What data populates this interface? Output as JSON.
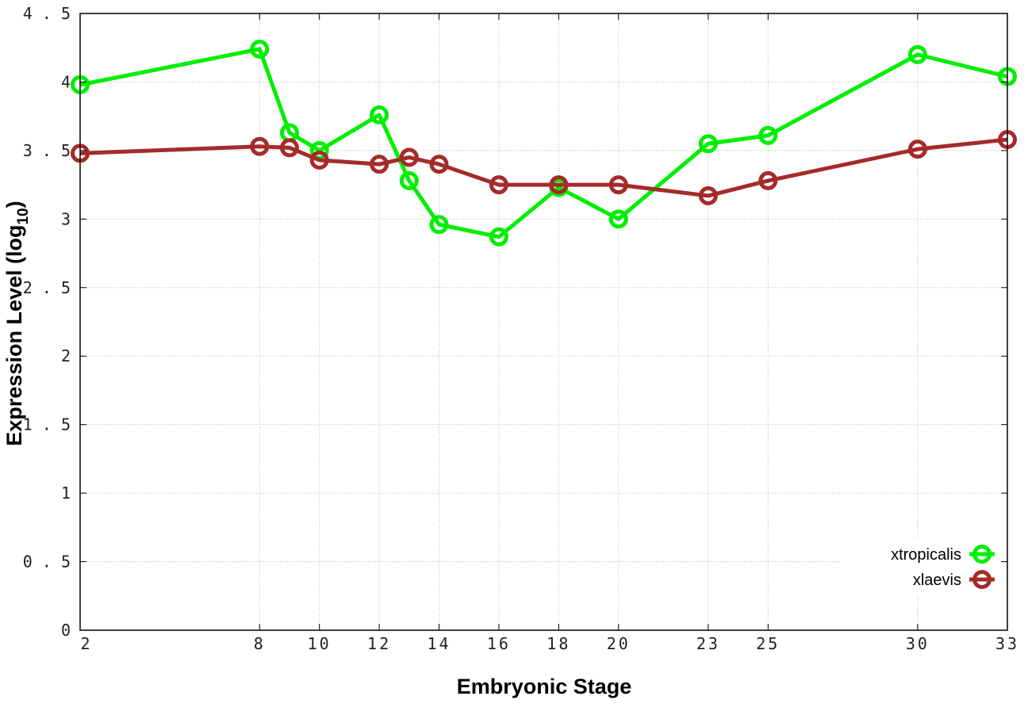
{
  "chart_data": {
    "type": "line",
    "xlabel": "Embryonic Stage",
    "ylabel": "Expression Level (log",
    "ylabel_subscript": "10",
    "ylabel_suffix": ")",
    "x": [
      2,
      8,
      9,
      10,
      12,
      13,
      14,
      16,
      18,
      20,
      23,
      25,
      30,
      33
    ],
    "x_tick_labels": [
      "2",
      "8",
      "10",
      "12",
      "14",
      "16",
      "18",
      "20",
      "23",
      "25",
      "30",
      "33"
    ],
    "y_tick_labels": [
      "0",
      "0.5",
      "1",
      "1.5",
      "2",
      "2.5",
      "3",
      "3.5",
      "4",
      "4.5"
    ],
    "xlim": [
      2,
      33
    ],
    "ylim": [
      0,
      4.5
    ],
    "grid": true,
    "legend_position": "bottom-right",
    "series": [
      {
        "name": "xtropicalis",
        "color": "#00ee00",
        "values": [
          3.98,
          4.24,
          3.63,
          3.5,
          3.76,
          3.28,
          2.96,
          2.87,
          3.23,
          3.0,
          3.55,
          3.61,
          4.2,
          4.04
        ]
      },
      {
        "name": "xlaevis",
        "color": "#a52a2a",
        "values": [
          3.48,
          3.53,
          3.52,
          3.43,
          3.4,
          3.45,
          3.4,
          3.25,
          3.25,
          3.25,
          3.17,
          3.28,
          3.51,
          3.58
        ]
      }
    ]
  }
}
